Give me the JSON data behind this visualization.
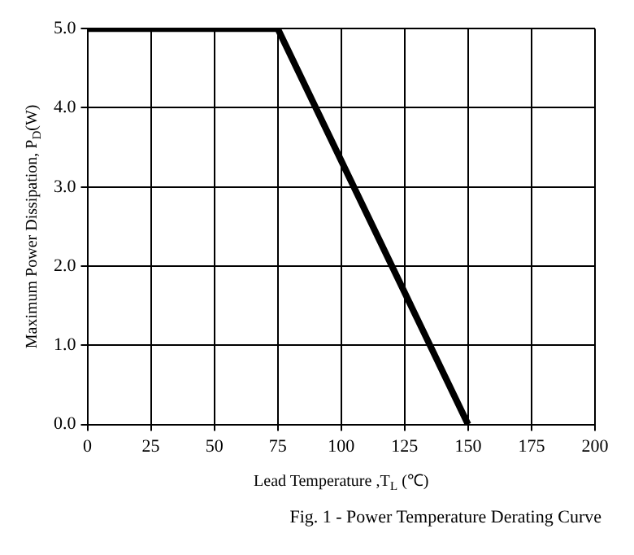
{
  "chart_data": {
    "type": "line",
    "xlabel": "Lead Temperature ,T$_{L}$ (℃)",
    "ylabel": "Maximum Power Dissipation, P$_{D}$(W)",
    "annotations": [
      "Fig. 1 - Power Temperature Derating Curve"
    ],
    "x": [
      0,
      75,
      150
    ],
    "series": [
      {
        "color": "#000000",
        "values": [
          5,
          5,
          0
        ]
      }
    ],
    "xlim": [
      0,
      200
    ],
    "xticks": [
      0,
      25,
      50,
      75,
      100,
      125,
      150,
      175,
      200
    ],
    "ylim": [
      0,
      5
    ],
    "yticks": [
      {
        "value": 0,
        "label": "0.0"
      },
      {
        "value": 1,
        "label": "1.0"
      },
      {
        "value": 2,
        "label": "2.0"
      },
      {
        "value": 3,
        "label": "3.0"
      },
      {
        "value": 4,
        "label": "4.0"
      },
      {
        "value": 5,
        "label": "5.0"
      }
    ],
    "grid": true,
    "legend": false,
    "marker": "none",
    "line_style": "solid"
  }
}
